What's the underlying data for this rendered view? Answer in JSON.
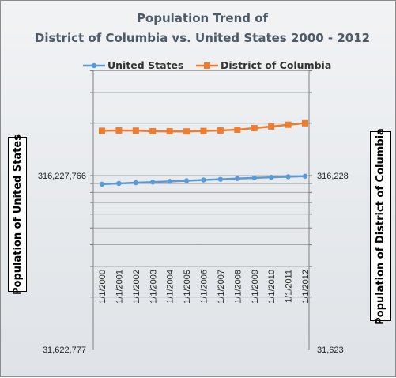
{
  "chart_data": {
    "type": "line",
    "title_line1": "Population Trend of",
    "title_line2": "District of Columbia vs. United States 2000 - 2012",
    "categories": [
      "1/1/2000",
      "1/1/2001",
      "1/1/2002",
      "1/1/2003",
      "1/1/2004",
      "1/1/2005",
      "1/1/2006",
      "1/1/2007",
      "1/1/2008",
      "1/1/2009",
      "1/1/2010",
      "1/1/2011",
      "1/1/2012"
    ],
    "ylabel_left": "Population of United States",
    "ylabel_right": "Population of District of Columbia",
    "left_axis": {
      "scale": "log",
      "ticks": [
        "316,227,766",
        "31,622,777"
      ]
    },
    "right_axis": {
      "scale": "log",
      "ticks": [
        "316,228",
        "31,623"
      ]
    },
    "legend_position": "top",
    "series": [
      {
        "name": "United States",
        "axis": "left",
        "color": "#5b9bd5",
        "marker": "circle",
        "values": [
          282162411,
          284968955,
          287625193,
          290107933,
          292805298,
          295516599,
          298379912,
          301231207,
          304093966,
          306771529,
          309326225,
          311582564,
          313873685
        ]
      },
      {
        "name": "District of Columbia",
        "axis": "right",
        "color": "#ed7d31",
        "marker": "square",
        "values": [
          571744,
          574504,
          573158,
          568502,
          567754,
          567136,
          570681,
          574404,
          580236,
          592228,
          605125,
          619624,
          632323
        ]
      }
    ]
  }
}
